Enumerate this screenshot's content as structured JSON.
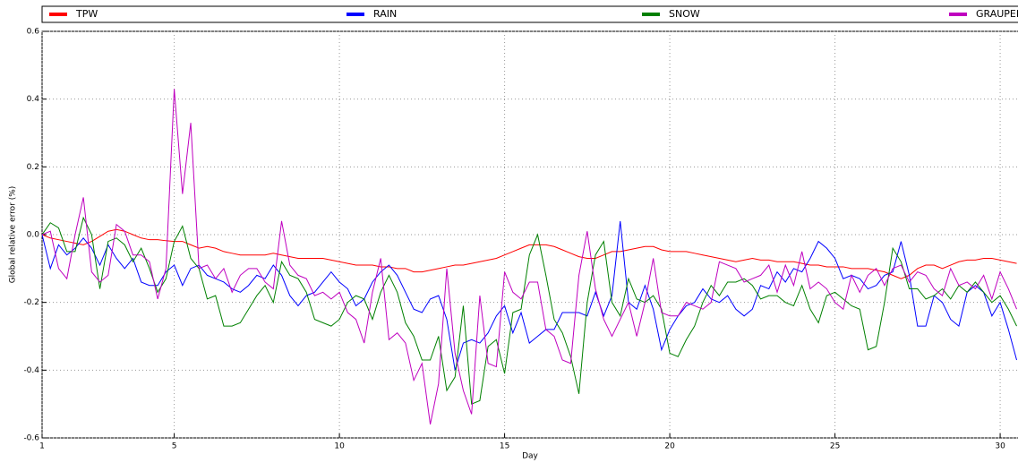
{
  "chart_data": {
    "type": "line",
    "xlabel": "Day",
    "ylabel": "Global relative error (%)",
    "x": [
      1,
      1.25,
      1.5,
      1.75,
      2,
      2.25,
      2.5,
      2.75,
      3,
      3.25,
      3.5,
      3.75,
      4,
      4.25,
      4.5,
      4.75,
      5,
      5.25,
      5.5,
      5.75,
      6,
      6.25,
      6.5,
      6.75,
      7,
      7.25,
      7.5,
      7.75,
      8,
      8.25,
      8.5,
      8.75,
      9,
      9.25,
      9.5,
      9.75,
      10,
      10.25,
      10.5,
      10.75,
      11,
      11.25,
      11.5,
      11.75,
      12,
      12.25,
      12.5,
      12.75,
      13,
      13.25,
      13.5,
      13.75,
      14,
      14.25,
      14.5,
      14.75,
      15,
      15.25,
      15.5,
      15.75,
      16,
      16.25,
      16.5,
      16.75,
      17,
      17.25,
      17.5,
      17.75,
      18,
      18.25,
      18.5,
      18.75,
      19,
      19.25,
      19.5,
      19.75,
      20,
      20.25,
      20.5,
      20.75,
      21,
      21.25,
      21.5,
      21.75,
      22,
      22.25,
      22.5,
      22.75,
      23,
      23.25,
      23.5,
      23.75,
      24,
      24.25,
      24.5,
      24.75,
      25,
      25.25,
      25.5,
      25.75,
      26,
      26.25,
      26.5,
      26.75,
      27,
      27.25,
      27.5,
      27.75,
      28,
      28.25,
      28.5,
      28.75,
      29,
      29.25,
      29.5,
      29.75,
      30,
      30.25,
      30.5
    ],
    "series": [
      {
        "name": "TPW",
        "color": "#ff0000",
        "values": [
          0,
          -0.01,
          -0.015,
          -0.02,
          -0.025,
          -0.03,
          -0.02,
          -0.005,
          0.01,
          0.015,
          0.01,
          0,
          -0.01,
          -0.015,
          -0.015,
          -0.018,
          -0.02,
          -0.02,
          -0.03,
          -0.04,
          -0.035,
          -0.04,
          -0.05,
          -0.055,
          -0.06,
          -0.06,
          -0.06,
          -0.06,
          -0.055,
          -0.06,
          -0.065,
          -0.07,
          -0.07,
          -0.07,
          -0.07,
          -0.075,
          -0.08,
          -0.085,
          -0.09,
          -0.09,
          -0.09,
          -0.095,
          -0.095,
          -0.1,
          -0.1,
          -0.11,
          -0.11,
          -0.105,
          -0.1,
          -0.095,
          -0.09,
          -0.09,
          -0.085,
          -0.08,
          -0.075,
          -0.07,
          -0.06,
          -0.05,
          -0.04,
          -0.03,
          -0.03,
          -0.03,
          -0.035,
          -0.045,
          -0.055,
          -0.065,
          -0.07,
          -0.07,
          -0.06,
          -0.05,
          -0.05,
          -0.045,
          -0.04,
          -0.035,
          -0.035,
          -0.045,
          -0.05,
          -0.05,
          -0.05,
          -0.055,
          -0.06,
          -0.065,
          -0.07,
          -0.075,
          -0.08,
          -0.075,
          -0.07,
          -0.075,
          -0.075,
          -0.08,
          -0.08,
          -0.08,
          -0.085,
          -0.09,
          -0.09,
          -0.095,
          -0.095,
          -0.095,
          -0.1,
          -0.1,
          -0.1,
          -0.105,
          -0.11,
          -0.12,
          -0.13,
          -0.12,
          -0.1,
          -0.09,
          -0.09,
          -0.1,
          -0.09,
          -0.08,
          -0.075,
          -0.075,
          -0.07,
          -0.07,
          -0.075,
          -0.08,
          -0.085
        ]
      },
      {
        "name": "RAIN",
        "color": "#0000ff",
        "values": [
          0,
          -0.1,
          -0.03,
          -0.06,
          -0.04,
          -0.01,
          -0.04,
          -0.09,
          -0.03,
          -0.07,
          -0.1,
          -0.07,
          -0.14,
          -0.15,
          -0.15,
          -0.11,
          -0.09,
          -0.15,
          -0.1,
          -0.09,
          -0.12,
          -0.13,
          -0.14,
          -0.16,
          -0.17,
          -0.15,
          -0.12,
          -0.13,
          -0.09,
          -0.12,
          -0.18,
          -0.21,
          -0.18,
          -0.17,
          -0.14,
          -0.11,
          -0.14,
          -0.16,
          -0.21,
          -0.19,
          -0.14,
          -0.11,
          -0.09,
          -0.12,
          -0.17,
          -0.22,
          -0.23,
          -0.19,
          -0.18,
          -0.25,
          -0.4,
          -0.32,
          -0.31,
          -0.32,
          -0.29,
          -0.24,
          -0.21,
          -0.29,
          -0.23,
          -0.32,
          -0.3,
          -0.28,
          -0.28,
          -0.23,
          -0.23,
          -0.23,
          -0.24,
          -0.17,
          -0.24,
          -0.18,
          0.04,
          -0.2,
          -0.22,
          -0.15,
          -0.22,
          -0.34,
          -0.28,
          -0.24,
          -0.21,
          -0.2,
          -0.16,
          -0.19,
          -0.2,
          -0.18,
          -0.22,
          -0.24,
          -0.22,
          -0.15,
          -0.16,
          -0.11,
          -0.14,
          -0.1,
          -0.11,
          -0.07,
          -0.02,
          -0.04,
          -0.07,
          -0.13,
          -0.12,
          -0.13,
          -0.16,
          -0.15,
          -0.12,
          -0.11,
          -0.02,
          -0.12,
          -0.27,
          -0.27,
          -0.18,
          -0.2,
          -0.25,
          -0.27,
          -0.17,
          -0.15,
          -0.17,
          -0.24,
          -0.2,
          -0.28,
          -0.37
        ]
      },
      {
        "name": "SNOW",
        "color": "#008000",
        "values": [
          0,
          0.035,
          0.02,
          -0.05,
          -0.05,
          0.05,
          0,
          -0.16,
          -0.02,
          -0.01,
          -0.03,
          -0.08,
          -0.04,
          -0.1,
          -0.17,
          -0.13,
          -0.02,
          0.025,
          -0.07,
          -0.1,
          -0.19,
          -0.18,
          -0.27,
          -0.27,
          -0.26,
          -0.22,
          -0.18,
          -0.15,
          -0.2,
          -0.08,
          -0.12,
          -0.13,
          -0.17,
          -0.25,
          -0.26,
          -0.27,
          -0.25,
          -0.2,
          -0.18,
          -0.19,
          -0.25,
          -0.17,
          -0.12,
          -0.17,
          -0.26,
          -0.3,
          -0.37,
          -0.37,
          -0.3,
          -0.46,
          -0.42,
          -0.21,
          -0.5,
          -0.49,
          -0.33,
          -0.31,
          -0.41,
          -0.23,
          -0.22,
          -0.06,
          0,
          -0.12,
          -0.25,
          -0.29,
          -0.36,
          -0.47,
          -0.2,
          -0.06,
          -0.02,
          -0.2,
          -0.24,
          -0.13,
          -0.19,
          -0.2,
          -0.18,
          -0.22,
          -0.35,
          -0.36,
          -0.31,
          -0.27,
          -0.2,
          -0.15,
          -0.18,
          -0.14,
          -0.14,
          -0.13,
          -0.15,
          -0.19,
          -0.18,
          -0.18,
          -0.2,
          -0.21,
          -0.15,
          -0.22,
          -0.26,
          -0.18,
          -0.17,
          -0.19,
          -0.21,
          -0.22,
          -0.34,
          -0.33,
          -0.2,
          -0.04,
          -0.08,
          -0.16,
          -0.16,
          -0.19,
          -0.18,
          -0.16,
          -0.19,
          -0.15,
          -0.17,
          -0.14,
          -0.17,
          -0.2,
          -0.18,
          -0.22,
          -0.27
        ]
      },
      {
        "name": "GRAUPEL",
        "color": "#bf00bf",
        "values": [
          0,
          0.01,
          -0.1,
          -0.13,
          0,
          0.11,
          -0.11,
          -0.14,
          -0.12,
          0.03,
          0.01,
          -0.06,
          -0.06,
          -0.08,
          -0.19,
          -0.1,
          0.43,
          0.12,
          0.33,
          -0.1,
          -0.09,
          -0.13,
          -0.1,
          -0.17,
          -0.12,
          -0.1,
          -0.1,
          -0.14,
          -0.16,
          0.04,
          -0.09,
          -0.12,
          -0.13,
          -0.18,
          -0.17,
          -0.19,
          -0.17,
          -0.23,
          -0.25,
          -0.32,
          -0.17,
          -0.07,
          -0.31,
          -0.29,
          -0.32,
          -0.43,
          -0.38,
          -0.56,
          -0.44,
          -0.1,
          -0.35,
          -0.46,
          -0.53,
          -0.18,
          -0.38,
          -0.39,
          -0.11,
          -0.17,
          -0.19,
          -0.14,
          -0.14,
          -0.28,
          -0.3,
          -0.37,
          -0.38,
          -0.12,
          0.01,
          -0.16,
          -0.25,
          -0.3,
          -0.25,
          -0.2,
          -0.3,
          -0.2,
          -0.07,
          -0.23,
          -0.24,
          -0.24,
          -0.2,
          -0.21,
          -0.22,
          -0.2,
          -0.08,
          -0.09,
          -0.1,
          -0.14,
          -0.13,
          -0.12,
          -0.09,
          -0.17,
          -0.09,
          -0.15,
          -0.05,
          -0.16,
          -0.14,
          -0.16,
          -0.2,
          -0.22,
          -0.12,
          -0.17,
          -0.12,
          -0.1,
          -0.15,
          -0.1,
          -0.09,
          -0.14,
          -0.11,
          -0.12,
          -0.16,
          -0.18,
          -0.1,
          -0.15,
          -0.14,
          -0.16,
          -0.12,
          -0.19,
          -0.11,
          -0.16,
          -0.22
        ]
      }
    ],
    "xlim": [
      1,
      30.54
    ],
    "xticks": [
      1,
      5,
      10,
      15,
      20,
      25,
      30
    ],
    "ylim": [
      -0.6,
      0.6
    ],
    "yticks": [
      -0.6,
      -0.4,
      -0.2,
      {
        "value": 0,
        "label": "0.0"
      },
      0.2,
      0.4,
      0.6
    ],
    "grid": true,
    "legend": "top"
  }
}
